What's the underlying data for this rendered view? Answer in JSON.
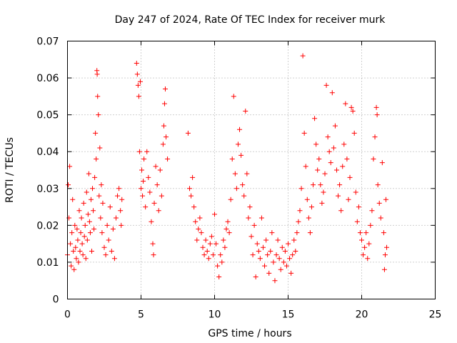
{
  "chart_data": {
    "type": "scatter",
    "title": "Day 247 of 2024, Rate Of TEC Index for receiver murk",
    "xlabel": "GPS time / hours",
    "ylabel": "ROTI / TECUs",
    "xlim": [
      0,
      25
    ],
    "ylim": [
      0,
      0.07
    ],
    "xticks": [
      0,
      5,
      10,
      15,
      20,
      25
    ],
    "xtick_labels": [
      "0",
      "5",
      "10",
      "15",
      "20",
      "25"
    ],
    "yticks": [
      0,
      0.01,
      0.02,
      0.03,
      0.04,
      0.05,
      0.06,
      0.07
    ],
    "ytick_labels": [
      "0",
      "0.01",
      "0.02",
      "0.03",
      "0.04",
      "0.05",
      "0.06",
      "0.07"
    ],
    "grid": true,
    "marker": "+",
    "color": "#ff0000",
    "points": [
      [
        0.0,
        0.012
      ],
      [
        0.05,
        0.031
      ],
      [
        0.1,
        0.022
      ],
      [
        0.15,
        0.036
      ],
      [
        0.2,
        0.015
      ],
      [
        0.25,
        0.009
      ],
      [
        0.3,
        0.018
      ],
      [
        0.35,
        0.027
      ],
      [
        0.4,
        0.013
      ],
      [
        0.45,
        0.008
      ],
      [
        0.5,
        0.02
      ],
      [
        0.55,
        0.014
      ],
      [
        0.6,
        0.011
      ],
      [
        0.65,
        0.019
      ],
      [
        0.7,
        0.016
      ],
      [
        0.75,
        0.01
      ],
      [
        0.8,
        0.024
      ],
      [
        0.85,
        0.013
      ],
      [
        0.9,
        0.018
      ],
      [
        0.95,
        0.022
      ],
      [
        1.0,
        0.015
      ],
      [
        1.05,
        0.012
      ],
      [
        1.1,
        0.026
      ],
      [
        1.15,
        0.017
      ],
      [
        1.2,
        0.02
      ],
      [
        1.25,
        0.011
      ],
      [
        1.3,
        0.029
      ],
      [
        1.35,
        0.016
      ],
      [
        1.4,
        0.023
      ],
      [
        1.45,
        0.034
      ],
      [
        1.5,
        0.021
      ],
      [
        1.55,
        0.018
      ],
      [
        1.6,
        0.027
      ],
      [
        1.65,
        0.013
      ],
      [
        1.7,
        0.03
      ],
      [
        1.75,
        0.024
      ],
      [
        1.8,
        0.019
      ],
      [
        1.85,
        0.033
      ],
      [
        1.9,
        0.045
      ],
      [
        1.95,
        0.038
      ],
      [
        2.0,
        0.062
      ],
      [
        2.02,
        0.061
      ],
      [
        2.05,
        0.055
      ],
      [
        2.1,
        0.05
      ],
      [
        2.15,
        0.028
      ],
      [
        2.2,
        0.041
      ],
      [
        2.25,
        0.022
      ],
      [
        2.3,
        0.031
      ],
      [
        2.35,
        0.018
      ],
      [
        2.4,
        0.026
      ],
      [
        2.5,
        0.014
      ],
      [
        2.6,
        0.012
      ],
      [
        2.7,
        0.02
      ],
      [
        2.8,
        0.016
      ],
      [
        2.9,
        0.025
      ],
      [
        3.0,
        0.013
      ],
      [
        3.1,
        0.019
      ],
      [
        3.2,
        0.011
      ],
      [
        3.3,
        0.022
      ],
      [
        3.4,
        0.028
      ],
      [
        3.5,
        0.03
      ],
      [
        3.6,
        0.024
      ],
      [
        3.65,
        0.02
      ],
      [
        3.7,
        0.027
      ],
      [
        4.7,
        0.064
      ],
      [
        4.75,
        0.061
      ],
      [
        4.8,
        0.058
      ],
      [
        4.85,
        0.055
      ],
      [
        4.9,
        0.04
      ],
      [
        4.95,
        0.059
      ],
      [
        5.0,
        0.03
      ],
      [
        5.05,
        0.035
      ],
      [
        5.1,
        0.028
      ],
      [
        5.15,
        0.032
      ],
      [
        5.2,
        0.038
      ],
      [
        5.3,
        0.025
      ],
      [
        5.4,
        0.04
      ],
      [
        5.5,
        0.033
      ],
      [
        5.6,
        0.029
      ],
      [
        5.7,
        0.021
      ],
      [
        5.8,
        0.015
      ],
      [
        5.85,
        0.012
      ],
      [
        5.9,
        0.026
      ],
      [
        6.0,
        0.036
      ],
      [
        6.1,
        0.031
      ],
      [
        6.2,
        0.024
      ],
      [
        6.3,
        0.035
      ],
      [
        6.4,
        0.028
      ],
      [
        6.5,
        0.042
      ],
      [
        6.55,
        0.047
      ],
      [
        6.6,
        0.053
      ],
      [
        6.65,
        0.057
      ],
      [
        6.7,
        0.044
      ],
      [
        6.8,
        0.038
      ],
      [
        8.2,
        0.045
      ],
      [
        8.3,
        0.03
      ],
      [
        8.4,
        0.028
      ],
      [
        8.5,
        0.033
      ],
      [
        8.6,
        0.025
      ],
      [
        8.7,
        0.021
      ],
      [
        8.8,
        0.016
      ],
      [
        8.9,
        0.019
      ],
      [
        9.0,
        0.022
      ],
      [
        9.1,
        0.018
      ],
      [
        9.2,
        0.014
      ],
      [
        9.3,
        0.012
      ],
      [
        9.4,
        0.016
      ],
      [
        9.5,
        0.013
      ],
      [
        9.6,
        0.011
      ],
      [
        9.7,
        0.015
      ],
      [
        9.8,
        0.017
      ],
      [
        9.9,
        0.012
      ],
      [
        10.0,
        0.023
      ],
      [
        10.1,
        0.015
      ],
      [
        10.2,
        0.009
      ],
      [
        10.3,
        0.006
      ],
      [
        10.4,
        0.012
      ],
      [
        10.5,
        0.01
      ],
      [
        10.6,
        0.016
      ],
      [
        10.7,
        0.014
      ],
      [
        10.8,
        0.019
      ],
      [
        10.9,
        0.021
      ],
      [
        11.0,
        0.018
      ],
      [
        11.1,
        0.027
      ],
      [
        11.2,
        0.038
      ],
      [
        11.3,
        0.055
      ],
      [
        11.4,
        0.034
      ],
      [
        11.5,
        0.03
      ],
      [
        11.6,
        0.042
      ],
      [
        11.7,
        0.046
      ],
      [
        11.8,
        0.039
      ],
      [
        11.9,
        0.031
      ],
      [
        12.0,
        0.028
      ],
      [
        12.1,
        0.051
      ],
      [
        12.2,
        0.034
      ],
      [
        12.3,
        0.022
      ],
      [
        12.4,
        0.025
      ],
      [
        12.5,
        0.017
      ],
      [
        12.6,
        0.012
      ],
      [
        12.7,
        0.02
      ],
      [
        12.8,
        0.006
      ],
      [
        12.9,
        0.015
      ],
      [
        13.0,
        0.013
      ],
      [
        13.1,
        0.011
      ],
      [
        13.2,
        0.022
      ],
      [
        13.3,
        0.014
      ],
      [
        13.4,
        0.009
      ],
      [
        13.5,
        0.016
      ],
      [
        13.6,
        0.012
      ],
      [
        13.7,
        0.007
      ],
      [
        13.8,
        0.013
      ],
      [
        13.9,
        0.018
      ],
      [
        14.0,
        0.01
      ],
      [
        14.1,
        0.005
      ],
      [
        14.2,
        0.012
      ],
      [
        14.3,
        0.016
      ],
      [
        14.4,
        0.011
      ],
      [
        14.5,
        0.008
      ],
      [
        14.6,
        0.014
      ],
      [
        14.7,
        0.01
      ],
      [
        14.8,
        0.013
      ],
      [
        14.9,
        0.009
      ],
      [
        15.0,
        0.015
      ],
      [
        15.1,
        0.011
      ],
      [
        15.2,
        0.007
      ],
      [
        15.3,
        0.012
      ],
      [
        15.4,
        0.016
      ],
      [
        15.5,
        0.013
      ],
      [
        15.6,
        0.018
      ],
      [
        15.7,
        0.021
      ],
      [
        15.8,
        0.024
      ],
      [
        15.9,
        0.03
      ],
      [
        16.0,
        0.066
      ],
      [
        16.1,
        0.045
      ],
      [
        16.2,
        0.036
      ],
      [
        16.3,
        0.027
      ],
      [
        16.4,
        0.022
      ],
      [
        16.5,
        0.018
      ],
      [
        16.6,
        0.025
      ],
      [
        16.7,
        0.031
      ],
      [
        16.8,
        0.049
      ],
      [
        16.9,
        0.042
      ],
      [
        17.0,
        0.035
      ],
      [
        17.1,
        0.038
      ],
      [
        17.2,
        0.031
      ],
      [
        17.3,
        0.026
      ],
      [
        17.4,
        0.029
      ],
      [
        17.5,
        0.034
      ],
      [
        17.6,
        0.058
      ],
      [
        17.7,
        0.044
      ],
      [
        17.8,
        0.04
      ],
      [
        17.9,
        0.037
      ],
      [
        18.0,
        0.056
      ],
      [
        18.1,
        0.041
      ],
      [
        18.2,
        0.047
      ],
      [
        18.3,
        0.035
      ],
      [
        18.4,
        0.028
      ],
      [
        18.5,
        0.031
      ],
      [
        18.6,
        0.024
      ],
      [
        18.7,
        0.036
      ],
      [
        18.8,
        0.042
      ],
      [
        18.9,
        0.053
      ],
      [
        19.0,
        0.038
      ],
      [
        19.1,
        0.027
      ],
      [
        19.2,
        0.033
      ],
      [
        19.3,
        0.052
      ],
      [
        19.4,
        0.051
      ],
      [
        19.5,
        0.045
      ],
      [
        19.6,
        0.029
      ],
      [
        19.7,
        0.021
      ],
      [
        19.8,
        0.025
      ],
      [
        19.9,
        0.018
      ],
      [
        20.0,
        0.016
      ],
      [
        20.1,
        0.012
      ],
      [
        20.2,
        0.014
      ],
      [
        20.3,
        0.018
      ],
      [
        20.4,
        0.011
      ],
      [
        20.5,
        0.015
      ],
      [
        20.6,
        0.02
      ],
      [
        20.7,
        0.024
      ],
      [
        20.8,
        0.038
      ],
      [
        20.9,
        0.044
      ],
      [
        21.0,
        0.052
      ],
      [
        21.05,
        0.05
      ],
      [
        21.1,
        0.031
      ],
      [
        21.2,
        0.026
      ],
      [
        21.3,
        0.022
      ],
      [
        21.4,
        0.037
      ],
      [
        21.5,
        0.018
      ],
      [
        21.55,
        0.008
      ],
      [
        21.6,
        0.012
      ],
      [
        21.65,
        0.027
      ],
      [
        21.7,
        0.014
      ]
    ]
  }
}
